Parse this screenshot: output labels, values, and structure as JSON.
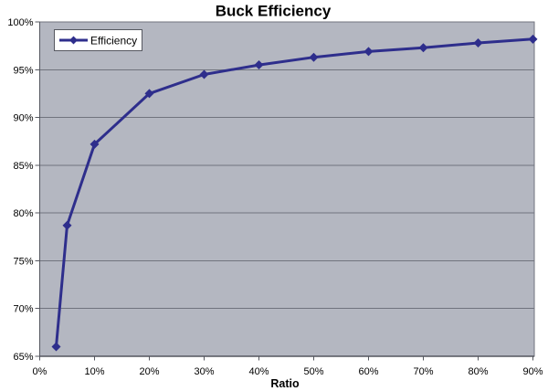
{
  "chart_data": {
    "type": "line",
    "title": "Buck Efficiency",
    "xlabel": "Ratio",
    "ylabel": "",
    "legend_label": "Efficiency",
    "legend_position": "top-left",
    "grid": true,
    "x": [
      3,
      5,
      10,
      20,
      30,
      40,
      50,
      60,
      70,
      80,
      90
    ],
    "values": [
      66.0,
      78.7,
      87.2,
      92.5,
      94.5,
      95.5,
      96.3,
      96.9,
      97.3,
      97.8,
      98.2
    ],
    "xlim": [
      0,
      90
    ],
    "ylim": [
      65,
      100
    ],
    "x_ticks": [
      0,
      10,
      20,
      30,
      40,
      50,
      60,
      70,
      80,
      90
    ],
    "x_tick_labels": [
      "0%",
      "10%",
      "20%",
      "30%",
      "40%",
      "50%",
      "60%",
      "70%",
      "80%",
      "90%"
    ],
    "y_ticks": [
      65,
      70,
      75,
      80,
      85,
      90,
      95,
      100
    ],
    "y_tick_labels": [
      "65%",
      "70%",
      "75%",
      "80%",
      "85%",
      "90%",
      "95%",
      "100%"
    ],
    "colors": {
      "series_line": "#2e2e8c",
      "marker": "#2e2e8c",
      "plot_background": "#b4b7c1",
      "gridline": "#70737e",
      "axis_line": "#55575f",
      "legend_border": "#55575f",
      "legend_background": "#ffffff",
      "text": "#000000",
      "page_background": "#ffffff"
    }
  }
}
